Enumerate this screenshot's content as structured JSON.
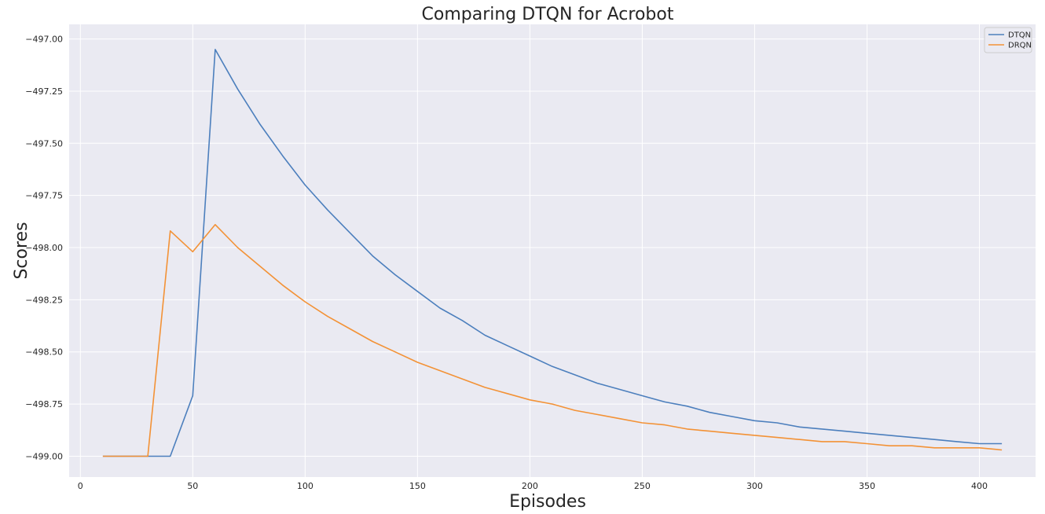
{
  "chart_data": {
    "type": "line",
    "title": "Comparing DTQN for Acrobot",
    "xlabel": "Episodes",
    "ylabel": "Scores",
    "xlim": [
      -5,
      425
    ],
    "ylim": [
      -499.1,
      -496.93
    ],
    "xticks": [
      0,
      50,
      100,
      150,
      200,
      250,
      300,
      350,
      400
    ],
    "xtick_labels": [
      "0",
      "50",
      "100",
      "150",
      "200",
      "250",
      "300",
      "350",
      "400"
    ],
    "yticks": [
      -497.0,
      -497.25,
      -497.5,
      -497.75,
      -498.0,
      -498.25,
      -498.5,
      -498.75,
      -499.0
    ],
    "ytick_labels": [
      "−497.00",
      "−497.25",
      "−497.50",
      "−497.75",
      "−498.00",
      "−498.25",
      "−498.50",
      "−498.75",
      "−499.00"
    ],
    "grid": true,
    "legend_position": "top-right",
    "x": [
      10,
      20,
      30,
      40,
      50,
      60,
      70,
      80,
      90,
      100,
      110,
      120,
      130,
      140,
      150,
      160,
      170,
      180,
      190,
      200,
      210,
      220,
      230,
      240,
      250,
      260,
      270,
      280,
      290,
      300,
      310,
      320,
      330,
      340,
      350,
      360,
      370,
      380,
      390,
      400,
      410
    ],
    "series": [
      {
        "name": "DTQN",
        "color": "#4c7fbd",
        "values": [
          -499.0,
          -499.0,
          -499.0,
          -499.0,
          -498.71,
          -497.05,
          -497.24,
          -497.41,
          -497.56,
          -497.7,
          -497.82,
          -497.93,
          -498.04,
          -498.13,
          -498.21,
          -498.29,
          -498.35,
          -498.42,
          -498.47,
          -498.52,
          -498.57,
          -498.61,
          -498.65,
          -498.68,
          -498.71,
          -498.74,
          -498.76,
          -498.79,
          -498.81,
          -498.83,
          -498.84,
          -498.86,
          -498.87,
          -498.88,
          -498.89,
          -498.9,
          -498.91,
          -498.92,
          -498.93,
          -498.94,
          -498.94
        ]
      },
      {
        "name": "DRQN",
        "color": "#f39236",
        "values": [
          -499.0,
          -499.0,
          -499.0,
          -497.92,
          -498.02,
          -497.89,
          -498.0,
          -498.09,
          -498.18,
          -498.26,
          -498.33,
          -498.39,
          -498.45,
          -498.5,
          -498.55,
          -498.59,
          -498.63,
          -498.67,
          -498.7,
          -498.73,
          -498.75,
          -498.78,
          -498.8,
          -498.82,
          -498.84,
          -498.85,
          -498.87,
          -498.88,
          -498.89,
          -498.9,
          -498.91,
          -498.92,
          -498.93,
          -498.93,
          -498.94,
          -498.95,
          -498.95,
          -498.96,
          -498.96,
          -498.96,
          -498.97
        ]
      }
    ]
  },
  "style": {
    "axes_bg": "#eaeaf2",
    "grid_color": "#ffffff",
    "text_color": "#262626"
  }
}
